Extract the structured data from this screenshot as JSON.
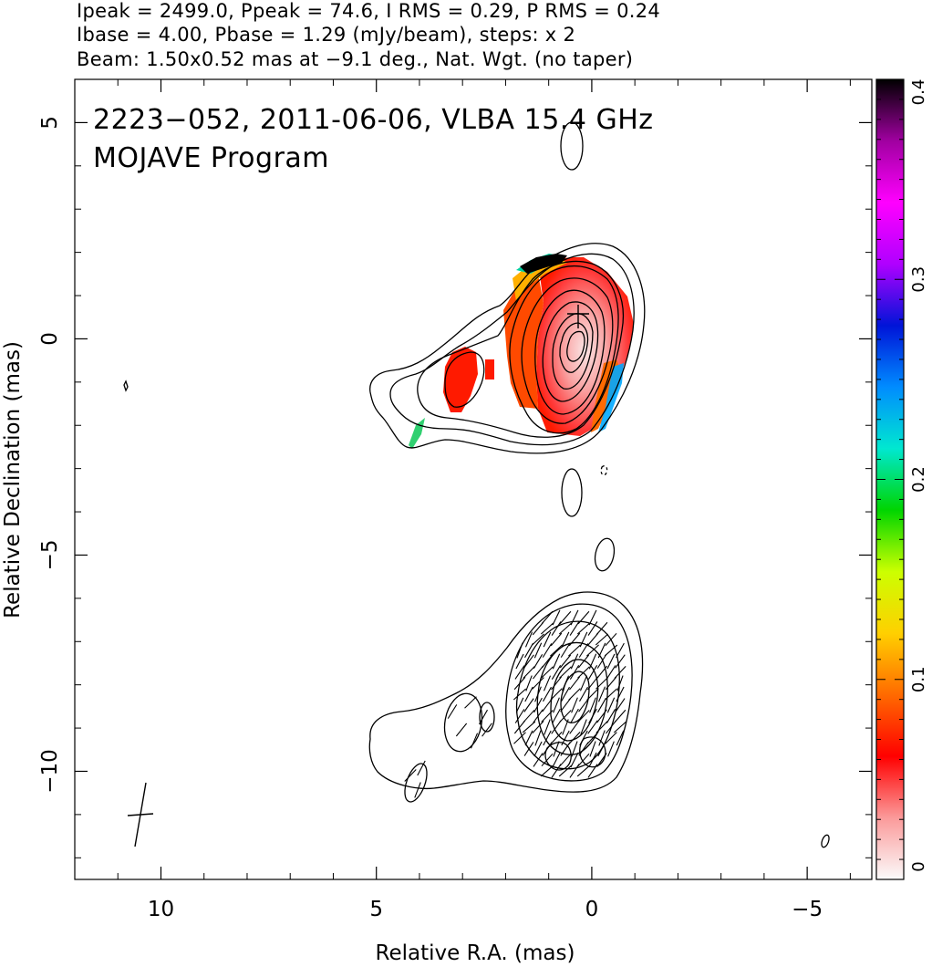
{
  "header": {
    "line1": "Ipeak = 2499.0, Ppeak = 74.6, I RMS = 0.29, P RMS = 0.24",
    "line2": "Ibase = 4.00, Pbase = 1.29 (mJy/beam), steps: x 2",
    "line3": "Beam: 1.50x0.52 mas at −9.1 deg., Nat. Wgt. (no taper)"
  },
  "chart_data": [
    {
      "type": "heatmap",
      "title": "2223−052, 2011-06-06, VLBA 15.4 GHz",
      "subtitle": "MOJAVE Program",
      "xlabel": "Relative R.A. (mas)",
      "ylabel": "Relative Declination (mas)",
      "xlim": [
        12,
        -6.5
      ],
      "ylim": [
        -12.5,
        6
      ],
      "x_ticks": [
        10,
        5,
        0,
        -5
      ],
      "y_ticks": [
        5,
        0,
        -5,
        -10
      ],
      "x_tick_labels": [
        "10",
        "5",
        "0",
        "−5"
      ],
      "y_tick_labels": [
        "5",
        "0",
        "−5",
        "−10"
      ],
      "total_intensity_contours_mJy_per_beam": {
        "base": 4.0,
        "factor": 2,
        "peak": 2499.0
      },
      "colorbar": {
        "label_min": "0",
        "label_max": "0.4",
        "ticks": [
          0,
          0.1,
          0.2,
          0.3,
          0.4
        ],
        "tick_labels": [
          "0",
          "0.1",
          "0.2",
          "0.3",
          "0.4"
        ],
        "stops": [
          "#fbfbfb",
          "#fb9a9a",
          "#ff0000",
          "#ff6a00",
          "#ffd000",
          "#ccff00",
          "#00d500",
          "#00e8d0",
          "#008cff",
          "#0014d8",
          "#b000ff",
          "#ff00ff",
          "#a000a0",
          "#000000"
        ]
      },
      "fractional_polarization_regions": [
        {
          "x": 0,
          "y": 0,
          "peak": 0.04
        },
        {
          "x": 3,
          "y": -1,
          "peak": 0.07
        },
        {
          "x": 1.5,
          "y": 1.5,
          "peak": 0.35
        }
      ],
      "core_position": [
        0,
        0
      ],
      "second_panel_offset_y": -7.8
    }
  ]
}
